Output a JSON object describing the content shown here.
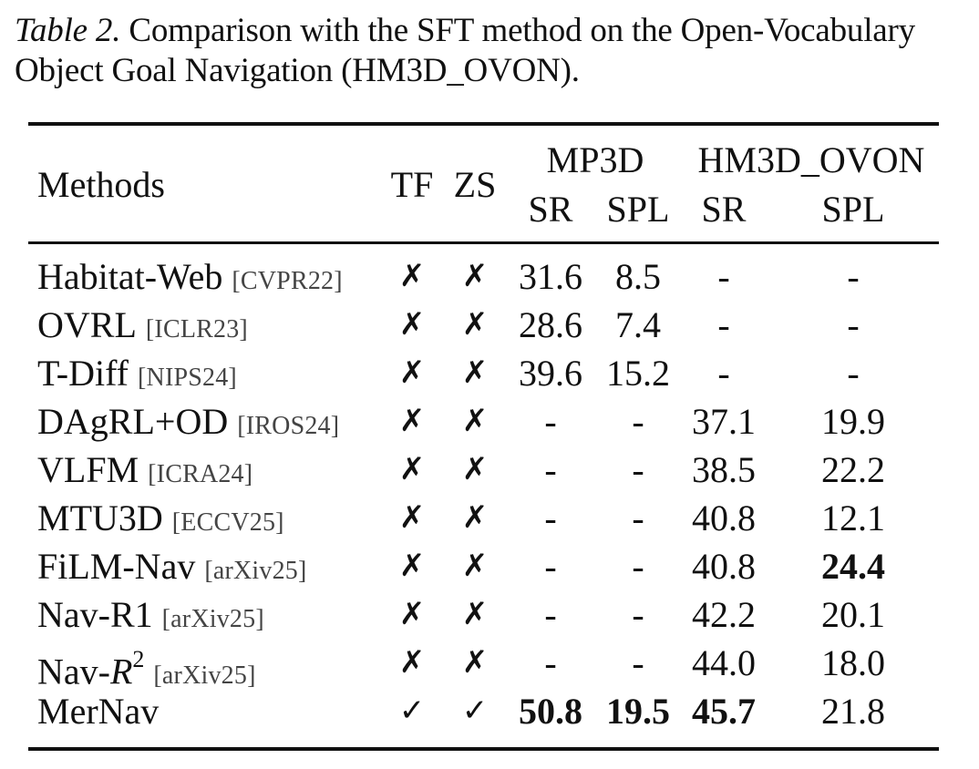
{
  "caption": {
    "label": "Table 2.",
    "line1": "Comparison with the SFT method on the Open-Vocabulary",
    "line2": "Object Goal Navigation (HM3D_OVON)."
  },
  "header": {
    "methods": "Methods",
    "tf": "TF",
    "zs": "ZS",
    "group1": "MP3D",
    "group2": "HM3D_OVON",
    "sr1": "SR",
    "spl1": "SPL",
    "sr2": "SR",
    "spl2": "SPL"
  },
  "rows": [
    {
      "name": "Habitat-Web",
      "venue": "[CVPR22]",
      "tf": "✗",
      "zs": "✗",
      "mp3d_sr": "31.6",
      "mp3d_spl": "8.5",
      "ovon_sr": "-",
      "ovon_spl": "-"
    },
    {
      "name": "OVRL",
      "venue": "[ICLR23]",
      "tf": "✗",
      "zs": "✗",
      "mp3d_sr": "28.6",
      "mp3d_spl": "7.4",
      "ovon_sr": "-",
      "ovon_spl": "-"
    },
    {
      "name": "T-Diff",
      "venue": "[NIPS24]",
      "tf": "✗",
      "zs": "✗",
      "mp3d_sr": "39.6",
      "mp3d_spl": "15.2",
      "ovon_sr": "-",
      "ovon_spl": "-"
    },
    {
      "name": "DAgRL+OD",
      "venue": "[IROS24]",
      "tf": "✗",
      "zs": "✗",
      "mp3d_sr": "-",
      "mp3d_spl": "-",
      "ovon_sr": "37.1",
      "ovon_spl": "19.9"
    },
    {
      "name": "VLFM",
      "venue": "[ICRA24]",
      "tf": "✗",
      "zs": "✗",
      "mp3d_sr": "-",
      "mp3d_spl": "-",
      "ovon_sr": "38.5",
      "ovon_spl": "22.2"
    },
    {
      "name": "MTU3D",
      "venue": "[ECCV25]",
      "tf": "✗",
      "zs": "✗",
      "mp3d_sr": "-",
      "mp3d_spl": "-",
      "ovon_sr": "40.8",
      "ovon_spl": "12.1"
    },
    {
      "name": "FiLM-Nav",
      "venue": "[arXiv25]",
      "tf": "✗",
      "zs": "✗",
      "mp3d_sr": "-",
      "mp3d_spl": "-",
      "ovon_sr": "40.8",
      "ovon_spl": "24.4"
    },
    {
      "name": "Nav-R1",
      "venue": "[arXiv25]",
      "tf": "✗",
      "zs": "✗",
      "mp3d_sr": "-",
      "mp3d_spl": "-",
      "ovon_sr": "42.2",
      "ovon_spl": "20.1"
    },
    {
      "name": "Nav-",
      "name_italic": "R",
      "name_sup": "2",
      "venue": "[arXiv25]",
      "tf": "✗",
      "zs": "✗",
      "mp3d_sr": "-",
      "mp3d_spl": "-",
      "ovon_sr": "44.0",
      "ovon_spl": "18.0"
    },
    {
      "name": "MerNav",
      "venue": "",
      "tf": "✓",
      "zs": "✓",
      "mp3d_sr": "50.8",
      "mp3d_spl": "19.5",
      "ovon_sr": "45.7",
      "ovon_spl": "21.8"
    }
  ]
}
